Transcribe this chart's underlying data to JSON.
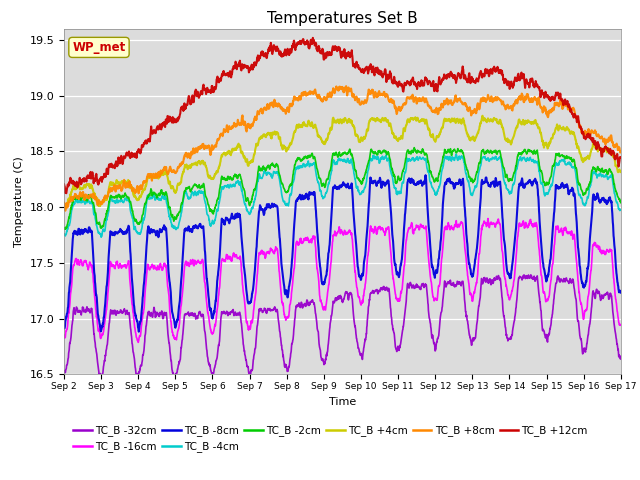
{
  "title": "Temperatures Set B",
  "xlabel": "Time",
  "ylabel": "Temperature (C)",
  "ylim": [
    16.5,
    19.6
  ],
  "x_tick_labels": [
    "Sep 2",
    "Sep 3",
    "Sep 4",
    "Sep 5",
    "Sep 6",
    "Sep 7",
    "Sep 8",
    "Sep 9",
    "Sep 10",
    "Sep 11",
    "Sep 12",
    "Sep 13",
    "Sep 14",
    "Sep 15",
    "Sep 16",
    "Sep 17"
  ],
  "series": [
    {
      "label": "TC_B -32cm",
      "color": "#9900CC",
      "lw": 1.2,
      "base_vals": [
        17.07,
        17.06,
        17.05,
        17.04,
        17.05,
        17.08,
        17.12,
        17.2,
        17.25,
        17.3,
        17.32,
        17.35,
        17.38,
        17.35,
        17.2
      ],
      "dip_amp": 0.25,
      "noise_amp": 0.04
    },
    {
      "label": "TC_B -16cm",
      "color": "#FF00FF",
      "lw": 1.2,
      "base_vals": [
        17.5,
        17.48,
        17.46,
        17.5,
        17.55,
        17.6,
        17.7,
        17.78,
        17.8,
        17.82,
        17.83,
        17.85,
        17.84,
        17.8,
        17.6
      ],
      "dip_amp": 0.3,
      "noise_amp": 0.04
    },
    {
      "label": "TC_B -8cm",
      "color": "#0000DD",
      "lw": 1.5,
      "base_vals": [
        17.78,
        17.77,
        17.78,
        17.82,
        17.9,
        18.0,
        18.1,
        18.2,
        18.22,
        18.22,
        18.22,
        18.22,
        18.22,
        18.18,
        18.05
      ],
      "dip_amp": 0.38,
      "noise_amp": 0.04
    },
    {
      "label": "TC_B -4cm",
      "color": "#00CCCC",
      "lw": 1.2,
      "base_vals": [
        18.05,
        18.06,
        18.08,
        18.12,
        18.2,
        18.3,
        18.38,
        18.42,
        18.43,
        18.43,
        18.44,
        18.44,
        18.43,
        18.4,
        18.28
      ],
      "dip_amp": 0.14,
      "noise_amp": 0.03
    },
    {
      "label": "TC_B -2cm",
      "color": "#00CC00",
      "lw": 1.2,
      "base_vals": [
        18.08,
        18.1,
        18.12,
        18.18,
        18.26,
        18.36,
        18.44,
        18.48,
        18.49,
        18.5,
        18.5,
        18.5,
        18.49,
        18.46,
        18.32
      ],
      "dip_amp": 0.12,
      "noise_amp": 0.03
    },
    {
      "label": "TC_B +4cm",
      "color": "#CCCC00",
      "lw": 1.5,
      "base_vals": [
        18.18,
        18.22,
        18.28,
        18.38,
        18.5,
        18.65,
        18.74,
        18.78,
        18.78,
        18.78,
        18.78,
        18.78,
        18.76,
        18.7,
        18.5
      ],
      "dip_amp": 0.08,
      "noise_amp": 0.03
    },
    {
      "label": "TC_B +8cm",
      "color": "#FF8800",
      "lw": 1.5,
      "base_vals": [
        18.1,
        18.18,
        18.3,
        18.5,
        18.72,
        18.9,
        19.02,
        19.06,
        19.0,
        18.96,
        18.94,
        18.96,
        18.98,
        18.92,
        18.6
      ],
      "dip_amp": 0.04,
      "noise_amp": 0.04
    },
    {
      "label": "TC_B +12cm",
      "color": "#CC0000",
      "lw": 1.5,
      "base_vals": [
        18.24,
        18.4,
        18.7,
        19.0,
        19.22,
        19.4,
        19.48,
        19.4,
        19.2,
        19.12,
        19.18,
        19.22,
        19.14,
        18.95,
        18.5
      ],
      "dip_amp": 0.03,
      "noise_amp": 0.05
    }
  ],
  "wp_met_label": "WP_met",
  "wp_met_color": "#CC0000",
  "wp_met_bg": "#FFFFCC",
  "plot_bg": "#DCDCDC",
  "title_fontsize": 11
}
